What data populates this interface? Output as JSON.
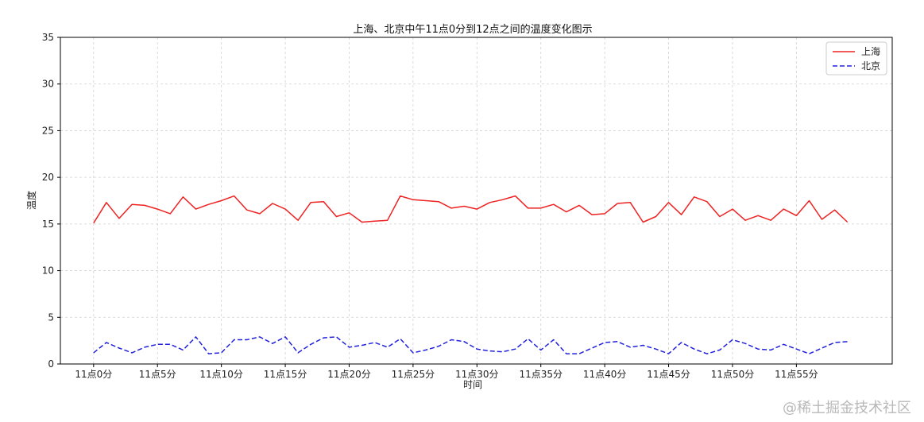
{
  "chart_data": {
    "type": "line",
    "title": "上海、北京中午11点0分到12点之间的温度变化图示",
    "xlabel": "时间",
    "ylabel": "温度",
    "ylim": [
      0,
      35
    ],
    "yticks": [
      0,
      5,
      10,
      15,
      20,
      25,
      30,
      35
    ],
    "xlim": [
      -2.6,
      62.5
    ],
    "xtick_positions": [
      0,
      5,
      10,
      15,
      20,
      25,
      30,
      35,
      40,
      45,
      50,
      55
    ],
    "xtick_labels": [
      "11点0分",
      "11点5分",
      "11点10分",
      "11点15分",
      "11点20分",
      "11点25分",
      "11点30分",
      "11点35分",
      "11点40分",
      "11点45分",
      "11点50分",
      "11点55分"
    ],
    "x": [
      0,
      1,
      2,
      3,
      4,
      5,
      6,
      7,
      8,
      9,
      10,
      11,
      12,
      13,
      14,
      15,
      16,
      17,
      18,
      19,
      20,
      21,
      22,
      23,
      24,
      25,
      26,
      27,
      28,
      29,
      30,
      31,
      32,
      33,
      34,
      35,
      36,
      37,
      38,
      39,
      40,
      41,
      42,
      43,
      44,
      45,
      46,
      47,
      48,
      49,
      50,
      51,
      52,
      53,
      54,
      55,
      56,
      57,
      58,
      59
    ],
    "grid": true,
    "legend_position": "top-right",
    "series": [
      {
        "name": "上海",
        "color": "#ee2222",
        "style": "solid",
        "values": [
          15.1,
          17.3,
          15.6,
          17.1,
          17.0,
          16.6,
          16.1,
          17.9,
          16.6,
          17.1,
          17.5,
          18.0,
          16.5,
          16.1,
          17.2,
          16.6,
          15.4,
          17.3,
          17.4,
          15.8,
          16.2,
          15.2,
          15.3,
          15.4,
          18.0,
          17.6,
          17.5,
          17.4,
          16.7,
          16.9,
          16.6,
          17.3,
          17.6,
          18.0,
          16.7,
          16.7,
          17.1,
          16.3,
          17.0,
          16.0,
          16.1,
          17.2,
          17.3,
          15.2,
          15.8,
          17.3,
          16.0,
          17.9,
          17.4,
          15.8,
          16.6,
          15.4,
          15.9,
          15.4,
          16.6,
          15.9,
          17.5,
          15.5,
          16.5,
          15.2
        ]
      },
      {
        "name": "北京",
        "color": "#2222dd",
        "style": "dashed",
        "values": [
          1.2,
          2.3,
          1.7,
          1.2,
          1.8,
          2.1,
          2.1,
          1.5,
          2.9,
          1.1,
          1.2,
          2.6,
          2.6,
          2.9,
          2.2,
          2.9,
          1.2,
          2.1,
          2.8,
          2.9,
          1.8,
          2.0,
          2.3,
          1.8,
          2.7,
          1.2,
          1.5,
          1.9,
          2.6,
          2.4,
          1.6,
          1.4,
          1.3,
          1.6,
          2.7,
          1.5,
          2.6,
          1.1,
          1.1,
          1.7,
          2.3,
          2.4,
          1.8,
          2.0,
          1.6,
          1.1,
          2.3,
          1.6,
          1.1,
          1.5,
          2.6,
          2.2,
          1.6,
          1.5,
          2.1,
          1.6,
          1.1,
          1.7,
          2.3,
          2.4
        ]
      }
    ]
  },
  "watermark": "@稀土掘金技术社区"
}
